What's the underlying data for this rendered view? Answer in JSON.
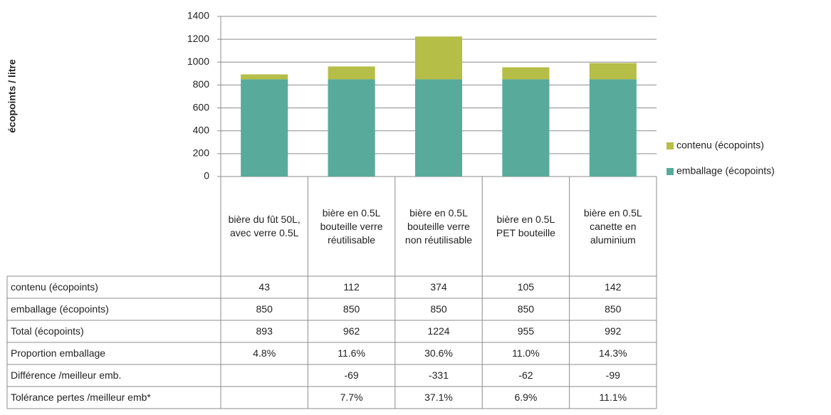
{
  "chart_data": {
    "type": "stacked_bar",
    "ylabel": "écopoints / litre",
    "categories": [
      "bière du fût 50L, avec verre 0.5L",
      "bière en 0.5L bouteille verre réutilisable",
      "bière en 0.5L bouteille verre non réutilisable",
      "bière en 0.5L PET bouteille",
      "bière en 0.5L canette en aluminium"
    ],
    "series": [
      {
        "name": "emballage (écopoints)",
        "color": "#58ab9b",
        "values": [
          850,
          850,
          850,
          850,
          850
        ]
      },
      {
        "name": "contenu (écopoints)",
        "color": "#b5be47",
        "values": [
          43,
          112,
          374,
          105,
          142
        ]
      }
    ],
    "ylim": [
      0,
      1400
    ],
    "yticks": [
      0,
      200,
      400,
      600,
      800,
      1000,
      1200,
      1400
    ],
    "grid": true,
    "legend": "right",
    "table": {
      "rows": [
        {
          "label": "Total (écopoints)",
          "values": [
            893,
            962,
            1224,
            955,
            992
          ]
        },
        {
          "label": "Proportion emballage",
          "values": [
            "4.8%",
            "11.6%",
            "30.6%",
            "11.0%",
            "14.3%"
          ]
        },
        {
          "label": "Différence /meilleur emb.",
          "values": [
            null,
            -69,
            -331,
            -62,
            -99
          ]
        },
        {
          "label": "Tolérance pertes /meilleur emb*",
          "values": [
            null,
            "7.7%",
            "37.1%",
            "6.9%",
            "11.1%"
          ]
        }
      ]
    }
  }
}
